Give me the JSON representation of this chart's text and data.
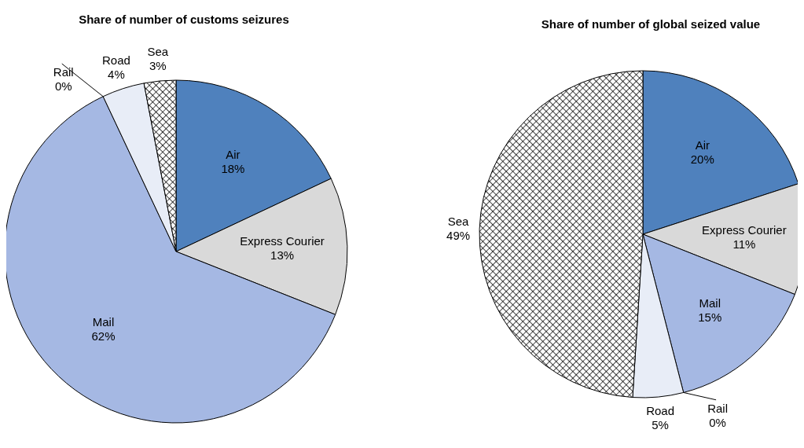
{
  "chart_data": [
    {
      "type": "pie",
      "title": "Share of number of customs seizures",
      "categories": [
        "Air",
        "Express Courier",
        "Mail",
        "Rail",
        "Road",
        "Sea"
      ],
      "values": [
        18,
        13,
        62,
        0,
        4,
        3
      ],
      "colors": [
        "#4f81bd",
        "#d9d9d9",
        "#a5b8e3",
        "#000000",
        "#e8edf7",
        "#000000"
      ],
      "value_labels": [
        "18%",
        "13%",
        "62%",
        "0%",
        "4%",
        "3%"
      ]
    },
    {
      "type": "pie",
      "title": "Share of number of global seized value",
      "categories": [
        "Air",
        "Express Courier",
        "Mail",
        "Rail",
        "Road",
        "Sea"
      ],
      "values": [
        20,
        11,
        15,
        0,
        5,
        49
      ],
      "colors": [
        "#4f81bd",
        "#d9d9d9",
        "#a5b8e3",
        "#000000",
        "#e8edf7",
        "#000000"
      ],
      "value_labels": [
        "20%",
        "11%",
        "15%",
        "0%",
        "5%",
        "49%"
      ]
    }
  ]
}
